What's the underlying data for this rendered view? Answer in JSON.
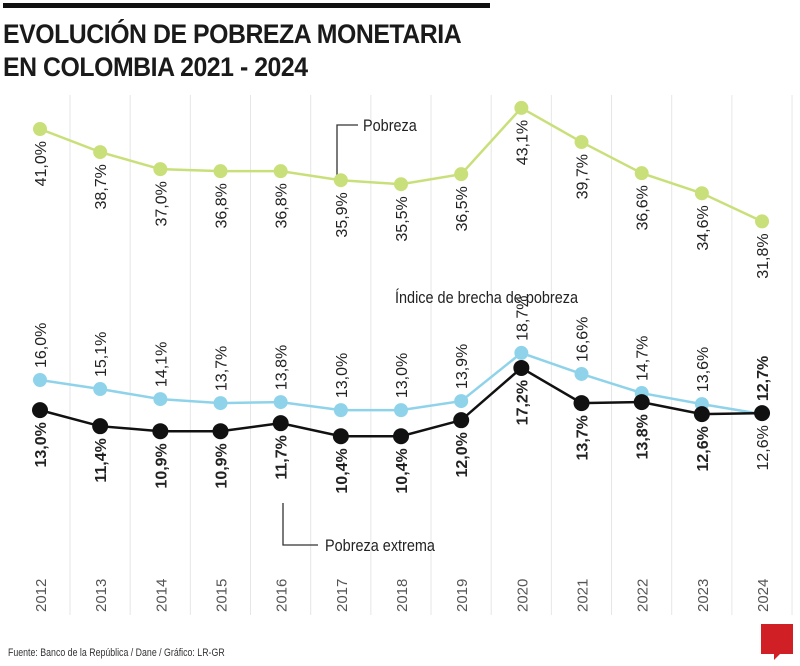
{
  "title": [
    "EVOLUCIÓN DE POBREZA MONETARIA",
    "EN COLOMBIA 2021 - 2024"
  ],
  "source": "Fuente: Banco de la República / Dane  / Gráfico: LR-GR",
  "logo": "LR",
  "chart_data": {
    "type": "line",
    "categories": [
      "2012",
      "2013",
      "2014",
      "2015",
      "2016",
      "2017",
      "2018",
      "2019",
      "2020",
      "2021",
      "2022",
      "2023",
      "2024"
    ],
    "unit": "%",
    "series": [
      {
        "name": "Pobreza",
        "color": "#c9e07a",
        "values": [
          41.0,
          38.7,
          37.0,
          36.8,
          36.8,
          35.9,
          35.5,
          36.5,
          43.1,
          39.7,
          36.6,
          34.6,
          31.8
        ]
      },
      {
        "name": "Índice de brecha de pobreza",
        "color": "#8fd3ea",
        "values": [
          16.0,
          15.1,
          14.1,
          13.7,
          13.8,
          13.0,
          13.0,
          13.9,
          18.7,
          16.6,
          14.7,
          13.6,
          12.6
        ]
      },
      {
        "name": "Pobreza extrema",
        "color": "#111111",
        "values": [
          13.0,
          11.4,
          10.9,
          10.9,
          11.7,
          10.4,
          10.4,
          12.0,
          17.2,
          13.7,
          13.8,
          12.6,
          12.7
        ]
      }
    ],
    "grid": "vertical",
    "legend": "inline annotations"
  }
}
